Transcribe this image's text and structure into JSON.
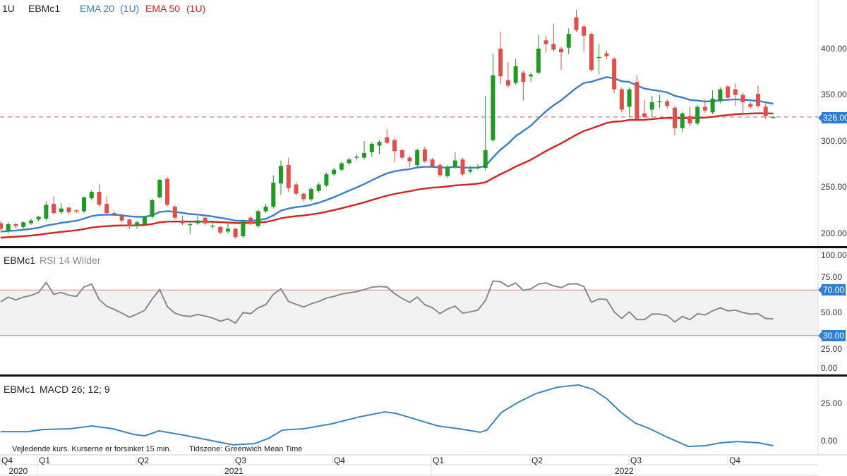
{
  "legend": {
    "interval": "1U",
    "symbol": "EBMc1",
    "ema20_label": "EMA 20",
    "ema20_interval": "(1U)",
    "ema50_label": "EMA 50",
    "ema50_interval": "(1U)"
  },
  "rsi_panel": {
    "symbol": "EBMc1",
    "title": "RSI 14 Wilder"
  },
  "macd_panel": {
    "symbol": "EBMc1",
    "title": "MACD 26; 12; 9"
  },
  "footer": {
    "disclaimer": "Vejledende kurs. Kurserne er forsinket 15 min.",
    "timezone": "Tidszone: Greenwich Mean Time"
  },
  "colors": {
    "up": "#1f9a24",
    "down": "#e0504a",
    "ema20": "#3a80c9",
    "ema50": "#d42222",
    "rsi": "#8a8a8a",
    "macd": "#3d86bd",
    "badge": "#2d7fd6"
  },
  "chart_data": [
    {
      "type": "candlestick",
      "title": "EBMc1 1U",
      "ylim": [
        185,
        445
      ],
      "yticks": [
        "400.00",
        "350.00",
        "300.00",
        "250.00",
        "200.00"
      ],
      "ytick_values": [
        400,
        350,
        300,
        250,
        200
      ],
      "last_price": 326,
      "last_price_label": "326.00",
      "ema20_start": 201.5,
      "ema50_start": 195,
      "ohlc": [
        [
          211,
          213,
          203,
          205
        ],
        [
          203,
          212,
          200,
          210
        ],
        [
          210,
          211,
          205,
          208
        ],
        [
          207,
          213,
          205,
          212
        ],
        [
          211,
          216,
          209,
          214
        ],
        [
          215,
          219,
          213,
          218
        ],
        [
          216,
          235,
          214,
          231
        ],
        [
          232,
          240,
          220,
          222
        ],
        [
          223,
          233,
          221,
          227
        ],
        [
          228,
          229,
          221,
          223
        ],
        [
          225,
          226,
          222,
          224
        ],
        [
          224,
          240,
          222,
          239
        ],
        [
          238,
          247,
          236,
          245
        ],
        [
          245,
          253,
          229,
          231
        ],
        [
          232,
          240,
          220,
          222
        ],
        [
          222,
          224,
          219,
          221
        ],
        [
          219,
          221,
          212,
          214
        ],
        [
          215,
          216,
          205,
          208
        ],
        [
          208,
          214,
          205,
          212
        ],
        [
          210,
          219,
          208,
          218
        ],
        [
          218,
          238,
          216,
          236
        ],
        [
          239,
          259,
          238,
          258
        ],
        [
          259,
          261,
          229,
          231
        ],
        [
          229,
          230,
          215,
          217
        ],
        [
          214,
          219,
          209,
          211
        ],
        [
          209,
          213,
          199,
          210
        ],
        [
          211,
          219,
          209,
          214
        ],
        [
          217,
          218,
          209,
          211
        ],
        [
          208,
          212,
          205,
          208.5
        ],
        [
          207,
          208,
          199,
          201
        ],
        [
          202,
          212,
          200,
          205
        ],
        [
          205,
          206,
          194,
          196
        ],
        [
          197,
          215,
          195,
          213
        ],
        [
          217,
          219,
          209,
          211
        ],
        [
          208,
          226,
          206,
          224
        ],
        [
          224,
          232,
          222,
          229
        ],
        [
          229,
          263,
          227,
          255
        ],
        [
          254,
          279,
          242,
          273
        ],
        [
          274,
          282,
          245,
          249
        ],
        [
          253,
          255,
          241,
          243
        ],
        [
          243,
          244,
          234,
          237
        ],
        [
          237,
          250,
          235,
          248
        ],
        [
          246,
          255,
          244,
          253
        ],
        [
          252,
          266,
          250,
          264
        ],
        [
          264,
          271,
          262,
          269
        ],
        [
          269,
          278,
          267,
          276
        ],
        [
          276,
          282,
          274,
          280
        ],
        [
          282,
          286,
          279,
          283
        ],
        [
          282,
          300,
          280,
          287
        ],
        [
          288,
          299,
          283,
          297
        ],
        [
          295,
          301,
          286,
          299
        ],
        [
          304,
          313,
          297,
          298
        ],
        [
          301,
          303,
          277,
          289
        ],
        [
          290,
          292,
          280,
          282
        ],
        [
          282,
          284,
          272,
          278
        ],
        [
          274,
          292,
          272,
          290
        ],
        [
          291,
          294,
          276,
          278
        ],
        [
          280,
          282,
          271,
          273
        ],
        [
          274,
          276,
          261,
          263
        ],
        [
          262,
          274,
          260,
          272
        ],
        [
          272,
          288,
          270,
          279
        ],
        [
          280,
          282,
          262,
          264
        ],
        [
          267,
          273,
          265,
          269
        ],
        [
          272,
          275,
          269,
          272
        ],
        [
          271,
          349,
          268,
          290
        ],
        [
          301,
          394,
          299,
          371
        ],
        [
          400,
          418,
          362,
          370
        ],
        [
          366,
          385,
          358,
          360
        ],
        [
          363,
          389,
          361,
          381
        ],
        [
          374,
          376,
          344,
          364
        ],
        [
          370,
          374,
          364,
          372
        ],
        [
          374,
          415,
          372,
          400
        ],
        [
          409,
          414,
          396,
          405
        ],
        [
          405,
          427,
          397,
          399
        ],
        [
          400,
          402,
          377,
          396
        ],
        [
          401,
          422,
          394,
          416
        ],
        [
          434,
          442,
          418,
          420
        ],
        [
          424,
          426,
          397,
          414
        ],
        [
          416,
          418,
          375,
          377
        ],
        [
          390,
          405,
          372,
          391
        ],
        [
          395,
          398,
          389,
          392
        ],
        [
          389,
          391,
          352,
          356
        ],
        [
          356,
          358,
          331,
          334
        ],
        [
          337,
          358,
          326,
          356
        ],
        [
          364,
          371,
          323,
          324
        ],
        [
          330,
          344,
          325,
          326
        ],
        [
          334,
          349,
          326,
          342
        ],
        [
          343,
          350,
          336,
          343
        ],
        [
          343,
          345,
          335,
          338
        ],
        [
          336,
          338,
          306,
          314
        ],
        [
          314,
          332,
          310,
          330
        ],
        [
          327,
          337,
          316,
          319
        ],
        [
          319,
          339,
          317,
          337
        ],
        [
          337,
          345,
          330,
          333
        ],
        [
          331,
          355,
          329,
          346
        ],
        [
          343,
          358,
          341,
          356
        ],
        [
          359,
          361,
          345,
          347
        ],
        [
          356,
          362,
          338,
          350
        ],
        [
          350,
          352,
          330,
          342
        ],
        [
          340,
          342,
          335,
          337
        ],
        [
          351,
          360,
          336,
          338
        ],
        [
          337,
          342,
          324,
          327
        ],
        [
          326,
          327,
          325,
          326
        ]
      ],
      "series": [
        {
          "name": "EMA 20 (1U)"
        },
        {
          "name": "EMA 50 (1U)"
        }
      ]
    },
    {
      "type": "line",
      "title": "EBMc1 RSI 14 Wilder",
      "ylim": [
        0,
        100
      ],
      "yticks": [
        "100.00",
        "75.00",
        "50.00",
        "25.00",
        "0.00"
      ],
      "ytick_values": [
        100,
        75,
        50,
        25,
        0
      ],
      "upper_band": 70,
      "upper_label": "70.00",
      "lower_band": 30,
      "lower_label": "30.00",
      "values": [
        59.6,
        63.8,
        61.3,
        63.8,
        65.2,
        67.9,
        76.7,
        66.3,
        67.9,
        65.4,
        64.4,
        72.7,
        75.2,
        61.7,
        55.8,
        52.9,
        49.6,
        46,
        48.8,
        52.1,
        62.1,
        70.4,
        55.4,
        49.6,
        47.5,
        46.7,
        48.5,
        47.1,
        45.4,
        42.5,
        44.6,
        40.8,
        50.2,
        49.2,
        54.4,
        57.1,
        66.3,
        71,
        60,
        57.5,
        55,
        57.9,
        60,
        62.9,
        64.4,
        66.5,
        67.5,
        68.5,
        70.4,
        72.5,
        73.1,
        72.7,
        66.9,
        62.7,
        59.2,
        63.8,
        57.1,
        54.4,
        49.2,
        53.3,
        55.8,
        49.6,
        50.8,
        52.3,
        60.6,
        77.9,
        77.3,
        73.1,
        76.2,
        69.6,
        71,
        75.2,
        76.2,
        73.7,
        72.1,
        75.2,
        75.6,
        73.1,
        59.2,
        62.1,
        61.7,
        50.8,
        45,
        50.8,
        44,
        44,
        48.8,
        48.8,
        47.5,
        41.9,
        46.7,
        44,
        49.2,
        48.1,
        51.7,
        54.4,
        51.7,
        52.3,
        50.2,
        48.8,
        49.2,
        45,
        44.6
      ]
    },
    {
      "type": "line",
      "title": "EBMc1 MACD 26; 12; 9",
      "ylim": [
        -5,
        40
      ],
      "yticks": [
        "25.00",
        "0.00"
      ],
      "ytick_values": [
        25,
        0
      ],
      "points": [
        [
          0,
          6.1
        ],
        [
          3.6,
          6.1
        ],
        [
          5.5,
          7.5
        ],
        [
          9.2,
          8
        ],
        [
          12,
          9.9
        ],
        [
          14.8,
          8
        ],
        [
          17.6,
          4.2
        ],
        [
          19,
          3.3
        ],
        [
          20.9,
          6.6
        ],
        [
          24.1,
          3.8
        ],
        [
          27.9,
          0
        ],
        [
          30.7,
          -2.8
        ],
        [
          33.5,
          -1.9
        ],
        [
          35.3,
          1.4
        ],
        [
          37.2,
          7.1
        ],
        [
          40,
          8
        ],
        [
          43.7,
          11.3
        ],
        [
          47.4,
          16
        ],
        [
          50.7,
          19.3
        ],
        [
          52.1,
          18.4
        ],
        [
          54,
          15.6
        ],
        [
          57.7,
          9.9
        ],
        [
          60.5,
          8
        ],
        [
          63.3,
          5.7
        ],
        [
          64.2,
          7.1
        ],
        [
          66.1,
          18.9
        ],
        [
          68.4,
          25.9
        ],
        [
          70.7,
          31.6
        ],
        [
          73.5,
          35.8
        ],
        [
          76.3,
          37.3
        ],
        [
          78.2,
          34.4
        ],
        [
          80.1,
          27.8
        ],
        [
          81.9,
          18.9
        ],
        [
          83.8,
          11.8
        ],
        [
          85.7,
          8
        ],
        [
          88,
          2.4
        ],
        [
          90.8,
          -3.8
        ],
        [
          93.1,
          -3.3
        ],
        [
          95,
          -1.4
        ],
        [
          97.3,
          -0.5
        ],
        [
          100.1,
          -1.4
        ],
        [
          102,
          -3.3
        ]
      ]
    }
  ],
  "time_axis": {
    "quarters": [
      {
        "label": "Q4",
        "index": -0.1
      },
      {
        "label": "Q1",
        "index": 4.85
      },
      {
        "label": "Q2",
        "index": 17.9
      },
      {
        "label": "Q3",
        "index": 30.75
      },
      {
        "label": "Q4",
        "index": 43.8
      },
      {
        "label": "Q1",
        "index": 56.85
      },
      {
        "label": "Q2",
        "index": 69.9
      },
      {
        "label": "Q3",
        "index": 82.95
      },
      {
        "label": "Q4",
        "index": 96
      }
    ],
    "years": [
      {
        "label": "2020",
        "start": -0.1,
        "end": 4.85
      },
      {
        "label": "2021",
        "start": 4.85,
        "end": 56.85
      },
      {
        "label": "2022",
        "start": 56.85,
        "end": 108
      }
    ]
  }
}
